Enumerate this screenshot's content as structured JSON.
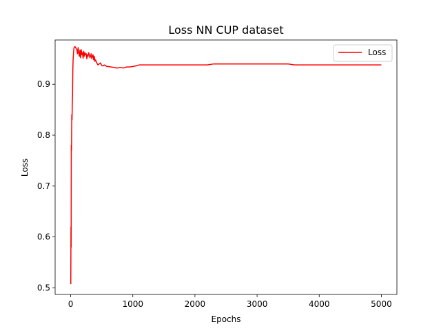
{
  "chart_data": {
    "type": "line",
    "title": "Loss NN CUP dataset",
    "xlabel": "Epochs",
    "ylabel": "Loss",
    "xlim": [
      -250,
      5250
    ],
    "ylim": [
      0.487,
      0.987
    ],
    "xticks": [
      0,
      1000,
      2000,
      3000,
      4000,
      5000
    ],
    "yticks": [
      0.5,
      0.6,
      0.7,
      0.8,
      0.9
    ],
    "legend": "top-right",
    "grid": false,
    "series": [
      {
        "name": "Loss",
        "color": "#ff0000",
        "x": [
          0,
          2,
          5,
          8,
          10,
          14,
          18,
          22,
          26,
          30,
          35,
          40,
          45,
          50,
          55,
          60,
          70,
          80,
          90,
          100,
          110,
          120,
          130,
          140,
          150,
          160,
          170,
          180,
          190,
          200,
          210,
          220,
          230,
          240,
          250,
          260,
          270,
          280,
          290,
          300,
          310,
          320,
          330,
          340,
          350,
          360,
          370,
          380,
          390,
          400,
          420,
          440,
          460,
          480,
          500,
          520,
          540,
          560,
          580,
          600,
          650,
          700,
          750,
          800,
          850,
          900,
          950,
          1000,
          1050,
          1100,
          1500,
          2000,
          2200,
          2300,
          2400,
          2600,
          2800,
          3000,
          3200,
          3400,
          3500,
          3600,
          3700,
          4000,
          4500,
          4900,
          5000
        ],
        "y": [
          0.51,
          0.508,
          0.62,
          0.58,
          0.78,
          0.77,
          0.84,
          0.83,
          0.86,
          0.88,
          0.93,
          0.95,
          0.96,
          0.968,
          0.972,
          0.973,
          0.974,
          0.972,
          0.97,
          0.968,
          0.96,
          0.972,
          0.962,
          0.955,
          0.967,
          0.952,
          0.968,
          0.958,
          0.962,
          0.951,
          0.965,
          0.955,
          0.962,
          0.958,
          0.96,
          0.95,
          0.958,
          0.955,
          0.962,
          0.958,
          0.952,
          0.955,
          0.96,
          0.95,
          0.955,
          0.958,
          0.948,
          0.955,
          0.945,
          0.948,
          0.942,
          0.938,
          0.94,
          0.942,
          0.937,
          0.936,
          0.938,
          0.937,
          0.935,
          0.935,
          0.934,
          0.933,
          0.932,
          0.933,
          0.932,
          0.934,
          0.934,
          0.935,
          0.936,
          0.938,
          0.938,
          0.938,
          0.938,
          0.94,
          0.94,
          0.94,
          0.94,
          0.94,
          0.94,
          0.94,
          0.94,
          0.938,
          0.938,
          0.938,
          0.938,
          0.938,
          0.938
        ]
      }
    ]
  }
}
